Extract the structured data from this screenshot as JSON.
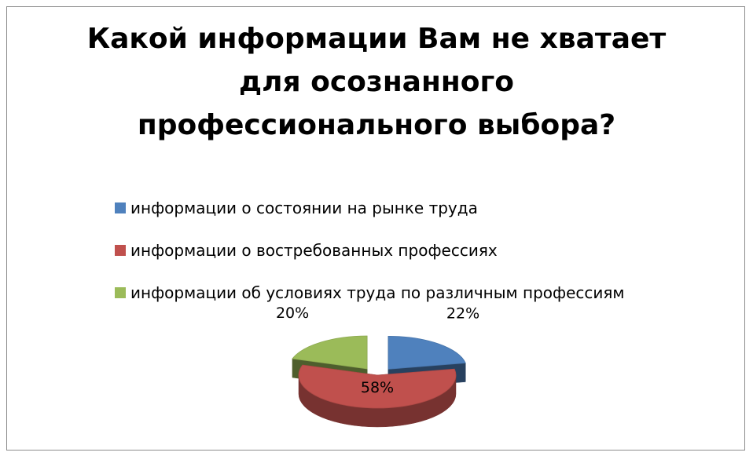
{
  "chart_data": {
    "type": "pie",
    "title": "Какой информации Вам не хватает\nдля осознанного\nпрофессионального выбора?",
    "categories": [
      "информации о состоянии на рынке труда",
      "информации о востребованных профессиях",
      "информации об условиях труда по различным профессиям"
    ],
    "values": [
      22,
      58,
      20
    ],
    "value_labels": [
      "22%",
      "58%",
      "20%"
    ],
    "colors": [
      "#4f81bd",
      "#c0504d",
      "#9bbb59"
    ],
    "legend_position": "top",
    "style": "3d-exploded"
  }
}
